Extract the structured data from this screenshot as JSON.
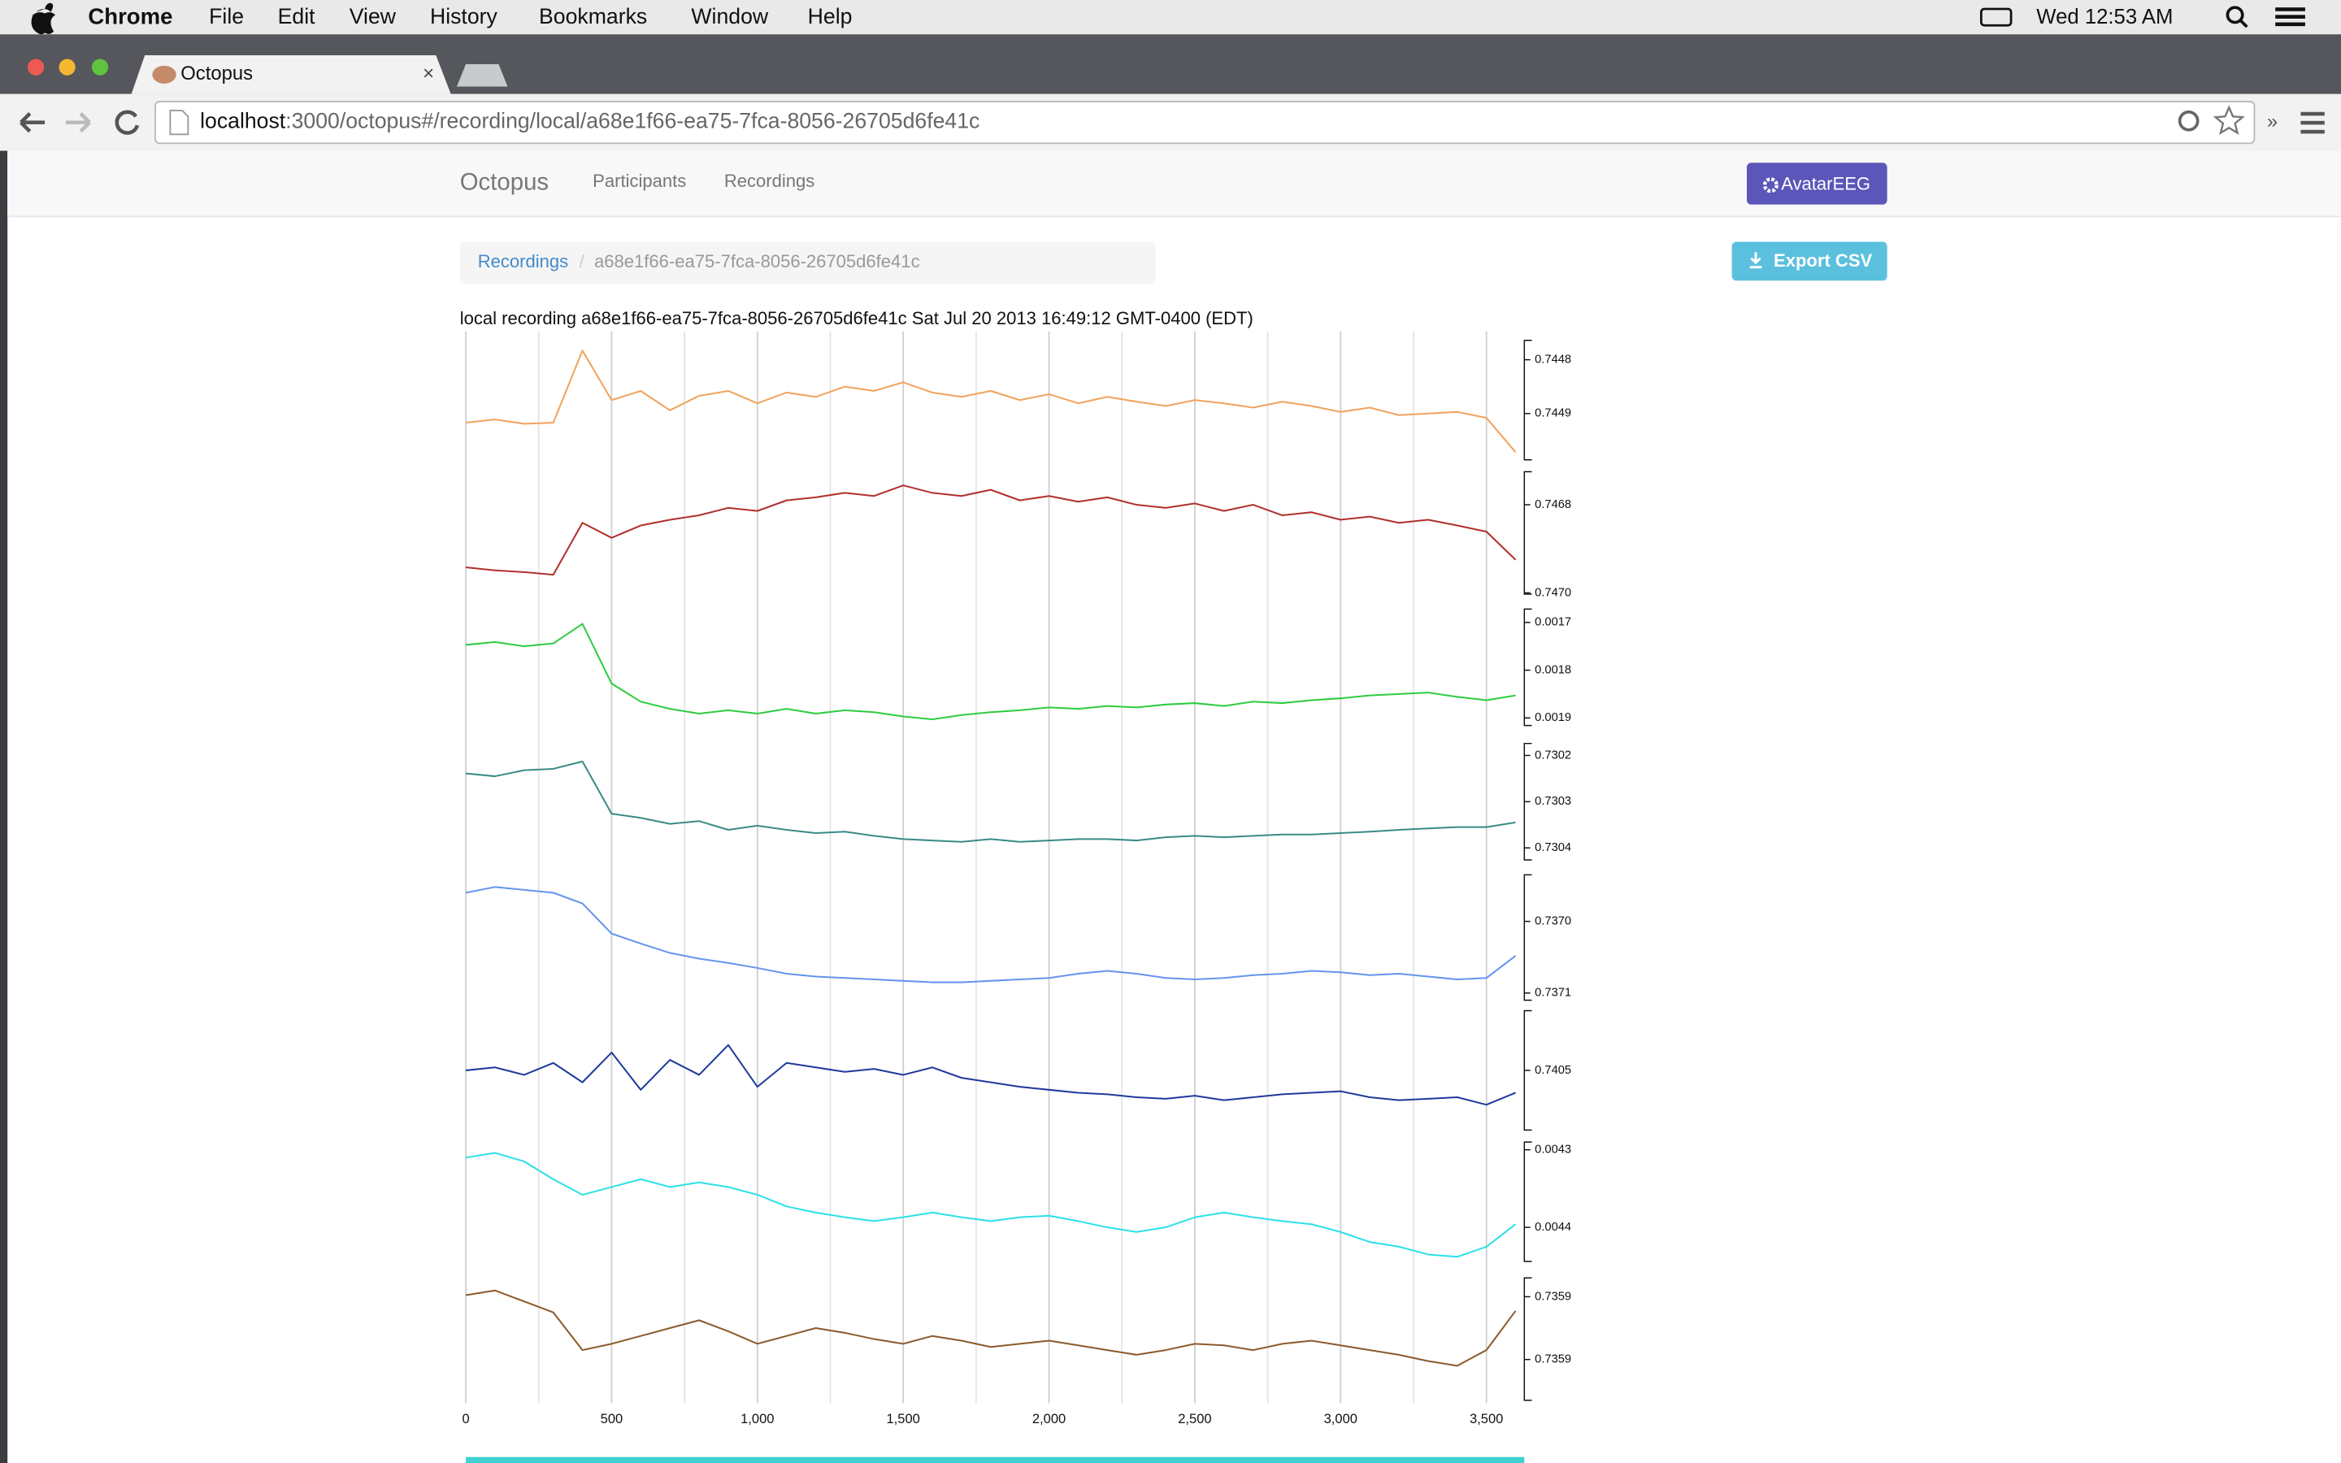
{
  "menubar": {
    "app": "Chrome",
    "items": [
      "File",
      "Edit",
      "View",
      "History",
      "Bookmarks",
      "Window",
      "Help"
    ],
    "clock": "Wed 12:53 AM"
  },
  "tab": {
    "title": "Octopus"
  },
  "address": {
    "host": "localhost",
    "path": ":3000/octopus#/recording/local/a68e1f66-ea75-7fca-8056-26705d6fe41c"
  },
  "navbar": {
    "brand": "Octopus",
    "links": [
      "Participants",
      "Recordings"
    ],
    "button": "AvatarEEG"
  },
  "breadcrumb": {
    "items": [
      "Recordings",
      "a68e1f66-ea75-7fca-8056-26705d6fe41c"
    ]
  },
  "export_button": "Export CSV",
  "chart_data": {
    "type": "line",
    "title": "local recording a68e1f66-ea75-7fca-8056-26705d6fe41c Sat Jul 20 2013 16:49:12 GMT-0400 (EDT)",
    "x": [
      0,
      100,
      200,
      300,
      400,
      500,
      600,
      700,
      800,
      900,
      1000,
      1100,
      1200,
      1300,
      1400,
      1500,
      1600,
      1700,
      1800,
      1900,
      2000,
      2100,
      2200,
      2300,
      2400,
      2500,
      2600,
      2700,
      2800,
      2900,
      3000,
      3100,
      3200,
      3300,
      3400,
      3500,
      3600
    ],
    "xlim": [
      0,
      3630
    ],
    "xticks": [
      0,
      500,
      {
        "value": 1000,
        "label": "1,000"
      },
      {
        "value": 1500,
        "label": "1,500"
      },
      {
        "value": 2000,
        "label": "2,000"
      },
      {
        "value": 2500,
        "label": "2,500"
      },
      {
        "value": 3000,
        "label": "3,000"
      },
      {
        "value": 3500,
        "label": "3,500"
      }
    ],
    "minor_xticks": [
      250,
      750,
      1250,
      1750,
      2250,
      2750,
      3250
    ],
    "grid": true,
    "series": [
      {
        "color": "#f0a35e",
        "ylim": [
          0.744986,
          0.744764
        ],
        "yticks": [
          0.7448,
          0.7449
        ],
        "values": [
          0.744917,
          0.744911,
          0.744919,
          0.744917,
          0.744783,
          0.744875,
          0.744858,
          0.744894,
          0.744867,
          0.744858,
          0.744881,
          0.744861,
          0.744869,
          0.74485,
          0.744858,
          0.744842,
          0.744861,
          0.744869,
          0.744858,
          0.744875,
          0.744864,
          0.744881,
          0.744869,
          0.744878,
          0.744886,
          0.744875,
          0.744881,
          0.744889,
          0.744878,
          0.744886,
          0.744897,
          0.744889,
          0.744903,
          0.7449,
          0.744897,
          0.744908,
          0.744972
        ]
      },
      {
        "color": "#b0302c",
        "ylim": [
          0.747003,
          0.746725
        ],
        "yticks": [
          0.7468,
          {
            "value": 0.747,
            "label": "0.7470"
          }
        ],
        "values": [
          0.746942,
          0.746949,
          0.746953,
          0.746959,
          0.746841,
          0.746875,
          0.746847,
          0.746834,
          0.746824,
          0.746807,
          0.746814,
          0.74679,
          0.746783,
          0.746773,
          0.74678,
          0.746756,
          0.746773,
          0.74678,
          0.746766,
          0.74679,
          0.74678,
          0.746793,
          0.746783,
          0.7468,
          0.746807,
          0.746797,
          0.746814,
          0.7468,
          0.746824,
          0.746817,
          0.746834,
          0.746827,
          0.746841,
          0.746834,
          0.746847,
          0.746861,
          0.746925
        ]
      },
      {
        "color": "#2ecc40",
        "ylim": [
          0.001916,
          0.001672
        ],
        "yticks": [
          0.0017,
          0.0018,
          0.0019
        ],
        "values": [
          0.001747,
          0.001741,
          0.00175,
          0.001744,
          0.001703,
          0.001828,
          0.001866,
          0.001881,
          0.001891,
          0.001884,
          0.001891,
          0.001881,
          0.001891,
          0.001884,
          0.001888,
          0.001897,
          0.001903,
          0.001894,
          0.001888,
          0.001884,
          0.001878,
          0.001881,
          0.001875,
          0.001878,
          0.001872,
          0.001869,
          0.001875,
          0.001866,
          0.001869,
          0.001863,
          0.001859,
          0.001853,
          0.00185,
          0.001847,
          0.001856,
          0.001863,
          0.001853
        ]
      },
      {
        "color": "#3a8a86",
        "ylim": [
          0.730426,
          0.730174
        ],
        "yticks": [
          0.7302,
          0.7303,
          0.7304
        ],
        "values": [
          0.730239,
          0.730245,
          0.730232,
          0.730229,
          0.730213,
          0.730326,
          0.730335,
          0.730348,
          0.730342,
          0.730361,
          0.730352,
          0.730361,
          0.730368,
          0.730365,
          0.730374,
          0.730381,
          0.730384,
          0.730387,
          0.730381,
          0.730387,
          0.730384,
          0.730381,
          0.730381,
          0.730384,
          0.730377,
          0.730374,
          0.730377,
          0.730374,
          0.730371,
          0.730371,
          0.730368,
          0.730365,
          0.730361,
          0.730358,
          0.730355,
          0.730355,
          0.730345
        ]
      },
      {
        "color": "#6495ed",
        "ylim": [
          0.73711,
          0.736935
        ],
        "yticks": [
          {
            "value": 0.737,
            "label": "0.7370"
          },
          0.7371
        ],
        "values": [
          0.73696,
          0.736952,
          0.736956,
          0.73696,
          0.736975,
          0.737017,
          0.737031,
          0.737044,
          0.737052,
          0.737058,
          0.737065,
          0.737073,
          0.737077,
          0.737079,
          0.737081,
          0.737083,
          0.737085,
          0.737085,
          0.737083,
          0.737081,
          0.737079,
          0.737073,
          0.737069,
          0.737073,
          0.737079,
          0.737081,
          0.737079,
          0.737075,
          0.737073,
          0.737069,
          0.737071,
          0.737075,
          0.737073,
          0.737077,
          0.737081,
          0.737079,
          0.737048
        ]
      },
      {
        "color": "#1f3a9a",
        "ylim": [
          0.74058,
          0.74042
        ],
        "yticks": [
          0.7405
        ],
        "values": [
          0.7405,
          0.740496,
          0.740506,
          0.74049,
          0.740516,
          0.740476,
          0.740526,
          0.740486,
          0.740506,
          0.740466,
          0.740522,
          0.74049,
          0.740496,
          0.740502,
          0.740498,
          0.740506,
          0.740496,
          0.74051,
          0.740516,
          0.740522,
          0.740526,
          0.74053,
          0.740532,
          0.740536,
          0.740538,
          0.740534,
          0.74054,
          0.740536,
          0.740532,
          0.74053,
          0.740528,
          0.740536,
          0.74054,
          0.740538,
          0.740536,
          0.740546,
          0.74053
        ]
      },
      {
        "color": "#2de0e8",
        "ylim": [
          0.004444,
          0.00429
        ],
        "yticks": [
          0.0043,
          0.0044
        ],
        "values": [
          0.00431,
          0.004304,
          0.004315,
          0.004338,
          0.004358,
          0.004348,
          0.004338,
          0.004348,
          0.004342,
          0.004348,
          0.004358,
          0.004373,
          0.004381,
          0.004387,
          0.004392,
          0.004387,
          0.004381,
          0.004387,
          0.004392,
          0.004387,
          0.004385,
          0.004392,
          0.0044,
          0.004406,
          0.0044,
          0.004387,
          0.004381,
          0.004387,
          0.004392,
          0.004396,
          0.004406,
          0.004419,
          0.004425,
          0.004435,
          0.004438,
          0.004425,
          0.004396
        ]
      },
      {
        "color": "#8b5a2b",
        "ylim": [
          0.735946,
          0.735868
        ],
        "yticks": [
          {
            "value": 0.73588,
            "label": "0.7359"
          },
          {
            "value": 0.73592,
            "label": "0.7359"
          }
        ],
        "values": [
          0.735879,
          0.735876,
          0.735883,
          0.73589,
          0.735914,
          0.73591,
          0.735905,
          0.7359,
          0.735895,
          0.735902,
          0.73591,
          0.735905,
          0.7359,
          0.735903,
          0.735907,
          0.73591,
          0.735905,
          0.735908,
          0.735912,
          0.73591,
          0.735908,
          0.735911,
          0.735914,
          0.735917,
          0.735914,
          0.73591,
          0.735911,
          0.735914,
          0.73591,
          0.735908,
          0.735911,
          0.735914,
          0.735917,
          0.735921,
          0.735924,
          0.735914,
          0.735889
        ]
      }
    ]
  }
}
